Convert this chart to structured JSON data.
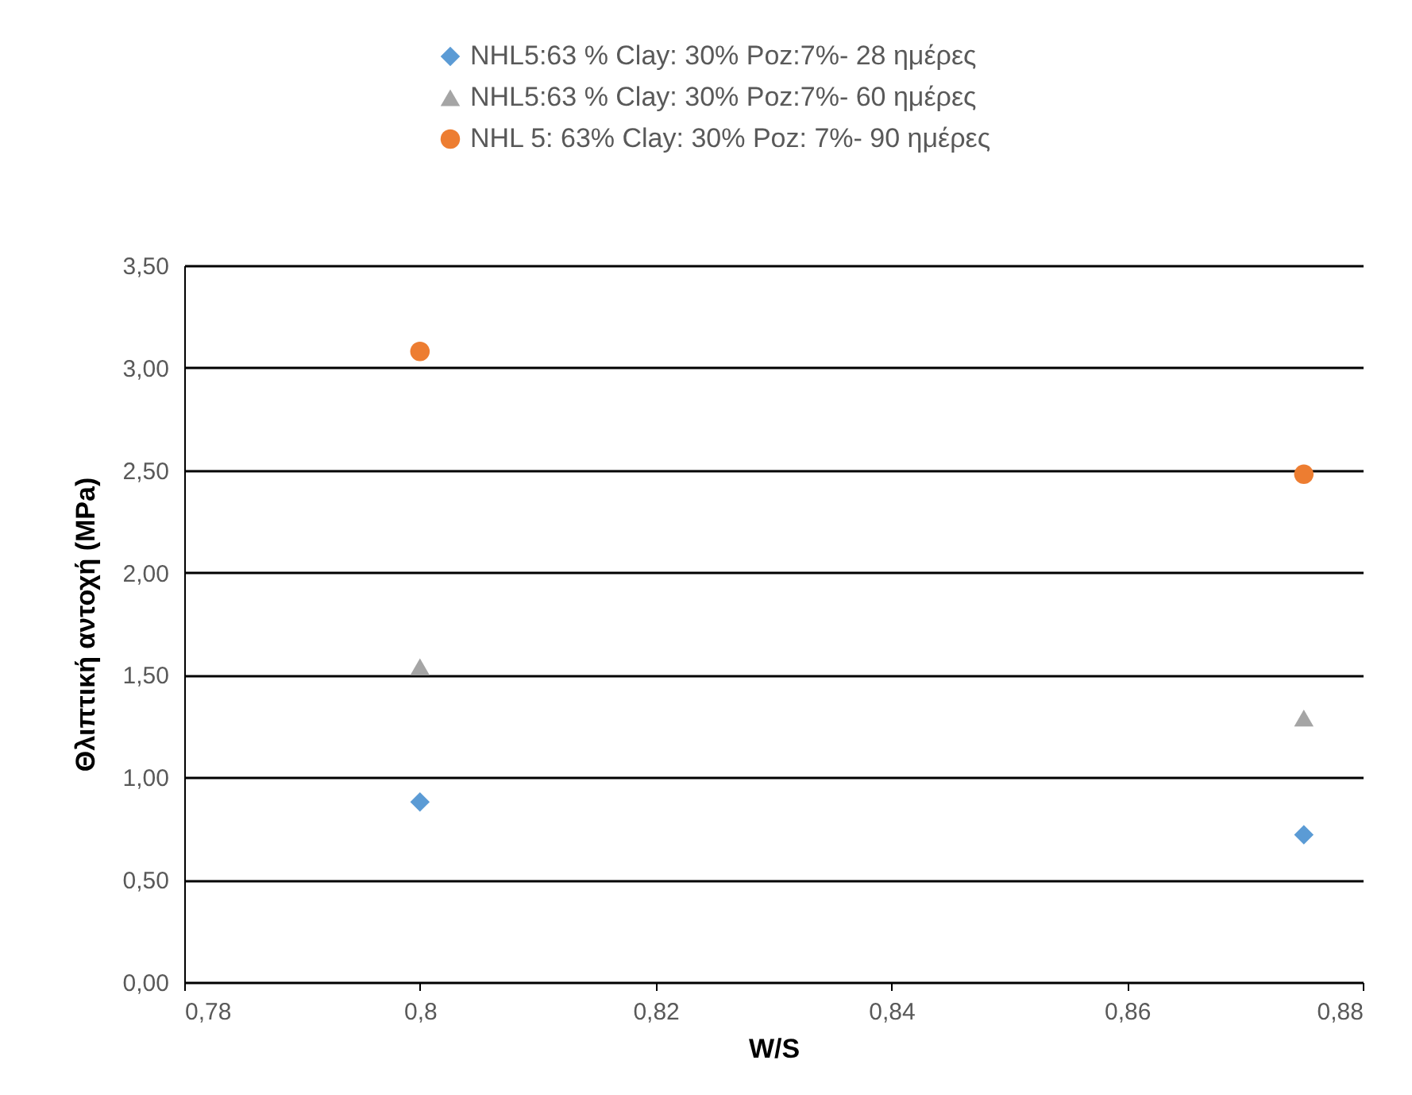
{
  "chart_data": {
    "type": "scatter",
    "xlabel": "W/S",
    "ylabel": "Θλιπτική αντοχή (MPa)",
    "x": [
      0.8,
      0.875
    ],
    "series": [
      {
        "name": "NHL5:63 % Clay: 30% Poz:7%- 28 ημέρες",
        "color": "#5b9bd5",
        "marker": "diamond",
        "values": [
          0.88,
          0.72
        ]
      },
      {
        "name": "NHL5:63 % Clay: 30% Poz:7%- 60 ημέρες",
        "color": "#a5a5a5",
        "marker": "triangle",
        "values": [
          1.54,
          1.29
        ]
      },
      {
        "name": "NHL 5: 63% Clay:  30% Poz: 7%- 90 ημέρες",
        "color": "#ed7d31",
        "marker": "circle",
        "values": [
          3.08,
          2.48
        ]
      }
    ],
    "xlim": [
      0.78,
      0.88
    ],
    "xticks": [
      {
        "value": 0.78,
        "label": "0,78"
      },
      {
        "value": 0.8,
        "label": "0,8"
      },
      {
        "value": 0.82,
        "label": "0,82"
      },
      {
        "value": 0.84,
        "label": "0,84"
      },
      {
        "value": 0.86,
        "label": "0,86"
      },
      {
        "value": 0.88,
        "label": "0,88"
      }
    ],
    "ylim": [
      0,
      3.5
    ],
    "yticks": [
      {
        "value": 0,
        "label": "0,00"
      },
      {
        "value": 0.5,
        "label": "0,50"
      },
      {
        "value": 1,
        "label": "1,00"
      },
      {
        "value": 1.5,
        "label": "1,50"
      },
      {
        "value": 2,
        "label": "2,00"
      },
      {
        "value": 2.5,
        "label": "2,50"
      },
      {
        "value": 3,
        "label": "3,00"
      },
      {
        "value": 3.5,
        "label": "3,50"
      }
    ],
    "grid": "y",
    "legend": "top"
  }
}
